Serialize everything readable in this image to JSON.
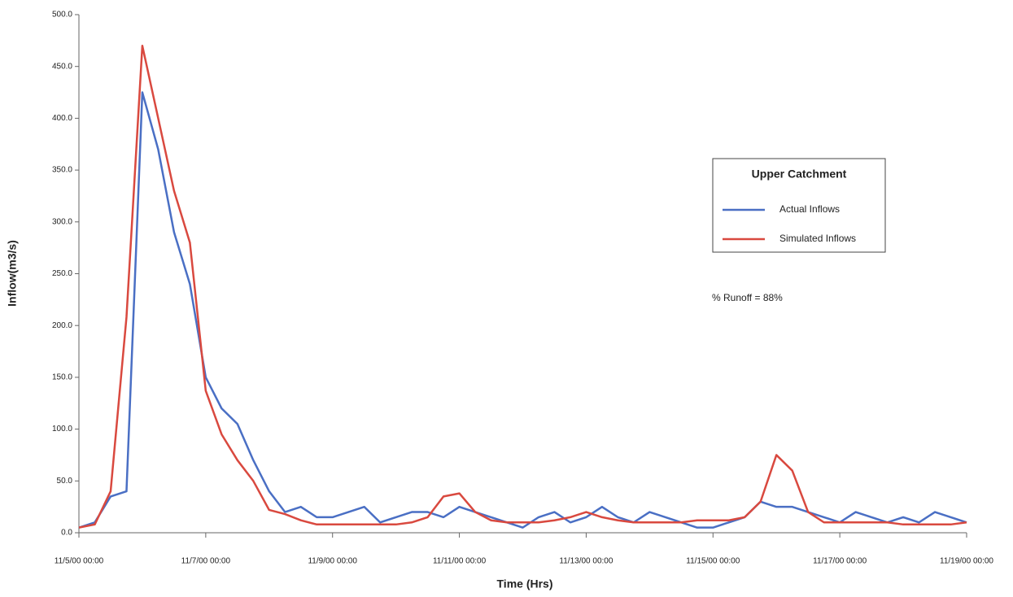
{
  "chart_data": {
    "type": "line",
    "ylabel": "Inflow(m3/s)",
    "xlabel": "Time (Hrs)",
    "legend_title": "Upper Catchment",
    "annotation": "% Runoff = 88%",
    "x": [
      "11/5/00 00:00",
      "11/5/00 06:00",
      "11/5/00 12:00",
      "11/5/00 18:00",
      "11/6/00 00:00",
      "11/6/00 06:00",
      "11/6/00 12:00",
      "11/6/00 18:00",
      "11/7/00 00:00",
      "11/7/00 06:00",
      "11/7/00 12:00",
      "11/7/00 18:00",
      "11/8/00 00:00",
      "11/8/00 06:00",
      "11/8/00 12:00",
      "11/8/00 18:00",
      "11/9/00 00:00",
      "11/9/00 06:00",
      "11/9/00 12:00",
      "11/9/00 18:00",
      "11/10/00 00:00",
      "11/10/00 06:00",
      "11/10/00 12:00",
      "11/10/00 18:00",
      "11/11/00 00:00",
      "11/11/00 06:00",
      "11/11/00 12:00",
      "11/11/00 18:00",
      "11/12/00 00:00",
      "11/12/00 06:00",
      "11/12/00 12:00",
      "11/12/00 18:00",
      "11/13/00 00:00",
      "11/13/00 06:00",
      "11/13/00 12:00",
      "11/13/00 18:00",
      "11/14/00 00:00",
      "11/14/00 06:00",
      "11/14/00 12:00",
      "11/14/00 18:00",
      "11/15/00 00:00",
      "11/15/00 06:00",
      "11/15/00 12:00",
      "11/15/00 18:00",
      "11/16/00 00:00",
      "11/16/00 06:00",
      "11/16/00 12:00",
      "11/16/00 18:00",
      "11/17/00 00:00",
      "11/17/00 06:00",
      "11/17/00 12:00",
      "11/17/00 18:00",
      "11/18/00 00:00",
      "11/18/00 06:00",
      "11/18/00 12:00",
      "11/18/00 18:00",
      "11/19/00 00:00"
    ],
    "series": [
      {
        "name": "Actual Inflows",
        "color": "#4a6fc4",
        "values": [
          5,
          10,
          35,
          40,
          425,
          370,
          290,
          240,
          150,
          120,
          105,
          70,
          40,
          20,
          25,
          15,
          15,
          20,
          25,
          10,
          15,
          20,
          20,
          15,
          25,
          20,
          15,
          10,
          5,
          15,
          20,
          10,
          15,
          25,
          15,
          10,
          20,
          15,
          10,
          5,
          5,
          10,
          15,
          30,
          25,
          25,
          20,
          15,
          10,
          20,
          15,
          10,
          15,
          10,
          20,
          15,
          10
        ]
      },
      {
        "name": "Simulated Inflows",
        "color": "#d9493f",
        "values": [
          5,
          8,
          40,
          208,
          470,
          400,
          330,
          280,
          137,
          95,
          70,
          50,
          22,
          18,
          12,
          8,
          8,
          8,
          8,
          8,
          8,
          10,
          15,
          35,
          38,
          20,
          12,
          10,
          10,
          10,
          12,
          15,
          20,
          15,
          12,
          10,
          10,
          10,
          10,
          12,
          12,
          12,
          15,
          30,
          75,
          60,
          20,
          10,
          10,
          10,
          10,
          10,
          8,
          8,
          8,
          8,
          10
        ]
      }
    ],
    "xlim": [
      "11/5/00 00:00",
      "11/19/00 00:00"
    ],
    "xticks": [
      "11/5/00 00:00",
      "11/7/00 00:00",
      "11/9/00 00:00",
      "11/11/00 00:00",
      "11/13/00 00:00",
      "11/15/00 00:00",
      "11/17/00 00:00",
      "11/19/00 00:00"
    ],
    "ylim": [
      0,
      500
    ],
    "yticks": [
      {
        "value": 0,
        "label": "0.0"
      },
      {
        "value": 50,
        "label": "50.0"
      },
      {
        "value": 100,
        "label": "100.0"
      },
      {
        "value": 150,
        "label": "150.0"
      },
      {
        "value": 200,
        "label": "200.0"
      },
      {
        "value": 250,
        "label": "250.0"
      },
      {
        "value": 300,
        "label": "300.0"
      },
      {
        "value": 350,
        "label": "350.0"
      },
      {
        "value": 400,
        "label": "400.0"
      },
      {
        "value": 450,
        "label": "450.0"
      },
      {
        "value": 500,
        "label": "500.0"
      }
    ]
  }
}
